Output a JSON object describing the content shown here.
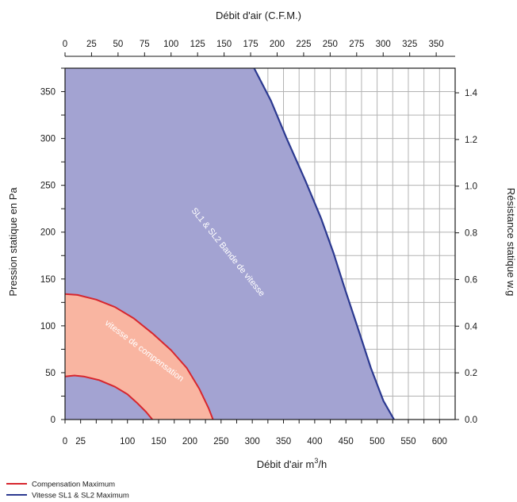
{
  "chart_data": {
    "type": "area",
    "title": "",
    "top_axis": {
      "label": "Débit d'air (C.F.M.)",
      "ticks": [
        0,
        25,
        50,
        75,
        100,
        125,
        150,
        175,
        200,
        225,
        250,
        275,
        300,
        325,
        350
      ],
      "m3h_per_unit": 1.699
    },
    "xlabel": "Débit d'air m",
    "xlabel_sup": "3",
    "xlabel_suffix": "/h",
    "x_ticks": [
      0,
      25,
      50,
      75,
      100,
      125,
      150,
      175,
      200,
      225,
      250,
      275,
      300,
      325,
      350,
      375,
      400,
      425,
      450,
      475,
      500,
      525,
      550,
      575,
      600
    ],
    "x_tick_labels": [
      "0",
      "25",
      "100",
      "150",
      "200",
      "250",
      "300",
      "350",
      "400",
      "450",
      "500",
      "550",
      "600"
    ],
    "x_tick_label_values": [
      0,
      25,
      100,
      150,
      200,
      250,
      300,
      350,
      400,
      450,
      500,
      550,
      600
    ],
    "xlim": [
      0,
      625
    ],
    "ylabel": "Pression statique en Pa",
    "y_ticks": [
      0,
      25,
      50,
      75,
      100,
      125,
      150,
      175,
      200,
      225,
      250,
      275,
      300,
      325,
      350,
      375
    ],
    "y_tick_labels": [
      0,
      50,
      100,
      150,
      200,
      250,
      300,
      350
    ],
    "ylim": [
      0,
      375
    ],
    "right_axis": {
      "label": "Résistance statique w.g",
      "ticks": [
        0.0,
        0.2,
        0.4,
        0.6,
        0.8,
        1.0,
        1.2,
        1.4
      ],
      "tick_labels": [
        "0.0",
        "0.2",
        "0.4",
        "0.6",
        "0.8",
        "1.0",
        "1.2",
        "1.4"
      ],
      "pa_per_unit": 249.1
    },
    "grid": true,
    "legend_position": "bottom-left",
    "series": [
      {
        "name": "Vitesse SL1 & SL2 Maximum",
        "color": "#2b3990",
        "fill": "#a3a3d2",
        "region_label": "SL1 & SL2 Bande de vitesse",
        "max_curve": [
          [
            303,
            375
          ],
          [
            330,
            340
          ],
          [
            355,
            300
          ],
          [
            385,
            255
          ],
          [
            410,
            215
          ],
          [
            430,
            178
          ],
          [
            448,
            140
          ],
          [
            468,
            100
          ],
          [
            490,
            55
          ],
          [
            510,
            20
          ],
          [
            527,
            0
          ]
        ]
      },
      {
        "name": "Compensation Maximum",
        "color": "#d7262e",
        "fill": "#f9b5a1",
        "region_label": "vitesse de compensation",
        "max_curve": [
          [
            0,
            134
          ],
          [
            20,
            133
          ],
          [
            50,
            128
          ],
          [
            80,
            120
          ],
          [
            110,
            108
          ],
          [
            140,
            92
          ],
          [
            170,
            74
          ],
          [
            195,
            55
          ],
          [
            215,
            33
          ],
          [
            230,
            12
          ],
          [
            237,
            0
          ]
        ],
        "min_curve": [
          [
            0,
            46
          ],
          [
            15,
            47
          ],
          [
            30,
            46
          ],
          [
            55,
            42
          ],
          [
            80,
            35
          ],
          [
            100,
            27
          ],
          [
            115,
            18
          ],
          [
            130,
            8
          ],
          [
            140,
            0
          ]
        ]
      }
    ]
  }
}
